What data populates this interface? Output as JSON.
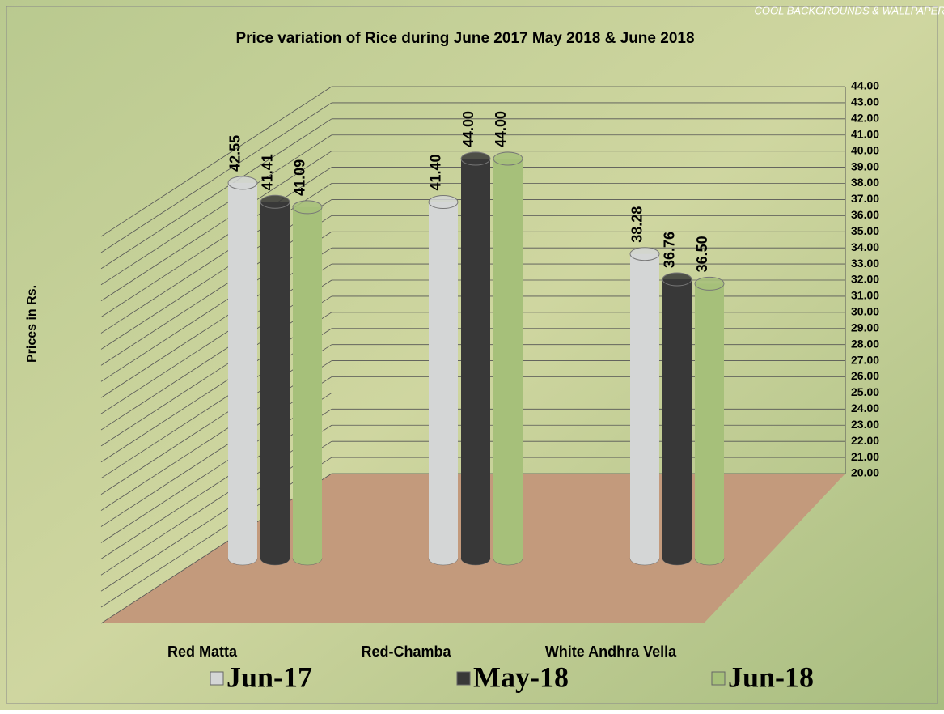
{
  "chart_data": {
    "type": "bar3d",
    "title": "Price variation of Rice during  June  2017  May  2018 &  June 2018",
    "watermark": "COOL BACKGROUNDS & WALLPAPERS",
    "y_label": "Prices in Rs.",
    "categories": [
      "Red Matta",
      "Red-Chamba",
      "White Andhra Vella"
    ],
    "series": [
      {
        "name": "Jun-17",
        "color": "#d4d6d6",
        "values": [
          42.55,
          41.4,
          38.28
        ],
        "value_labels": [
          "42.55",
          "41.40",
          "38.28"
        ]
      },
      {
        "name": "May-18",
        "color": "#383838",
        "values": [
          41.41,
          44,
          36.76
        ],
        "value_labels": [
          "41.41",
          "44.00",
          "36.76"
        ]
      },
      {
        "name": "Jun-18",
        "color": "#a6c07a",
        "values": [
          41.09,
          44,
          36.5
        ],
        "value_labels": [
          "41.09",
          "44.00",
          "36.50"
        ]
      }
    ],
    "ylim": [
      20,
      44
    ],
    "yticks": [
      {
        "value": 20,
        "label": "20.00"
      },
      {
        "value": 21,
        "label": "21.00"
      },
      {
        "value": 22,
        "label": "22.00"
      },
      {
        "value": 23,
        "label": "23.00"
      },
      {
        "value": 24,
        "label": "24.00"
      },
      {
        "value": 25,
        "label": "25.00"
      },
      {
        "value": 26,
        "label": "26.00"
      },
      {
        "value": 27,
        "label": "27.00"
      },
      {
        "value": 28,
        "label": "28.00"
      },
      {
        "value": 29,
        "label": "29.00"
      },
      {
        "value": 30,
        "label": "30.00"
      },
      {
        "value": 31,
        "label": "31.00"
      },
      {
        "value": 32,
        "label": "32.00"
      },
      {
        "value": 33,
        "label": "33.00"
      },
      {
        "value": 34,
        "label": "34.00"
      },
      {
        "value": 35,
        "label": "35.00"
      },
      {
        "value": 36,
        "label": "36.00"
      },
      {
        "value": 37,
        "label": "37.00"
      },
      {
        "value": 38,
        "label": "38.00"
      },
      {
        "value": 39,
        "label": "39.00"
      },
      {
        "value": 40,
        "label": "40.00"
      },
      {
        "value": 41,
        "label": "41.00"
      },
      {
        "value": 42,
        "label": "42.00"
      },
      {
        "value": 43,
        "label": "43.00"
      },
      {
        "value": 44,
        "label": "44.00"
      }
    ],
    "grid": true
  }
}
